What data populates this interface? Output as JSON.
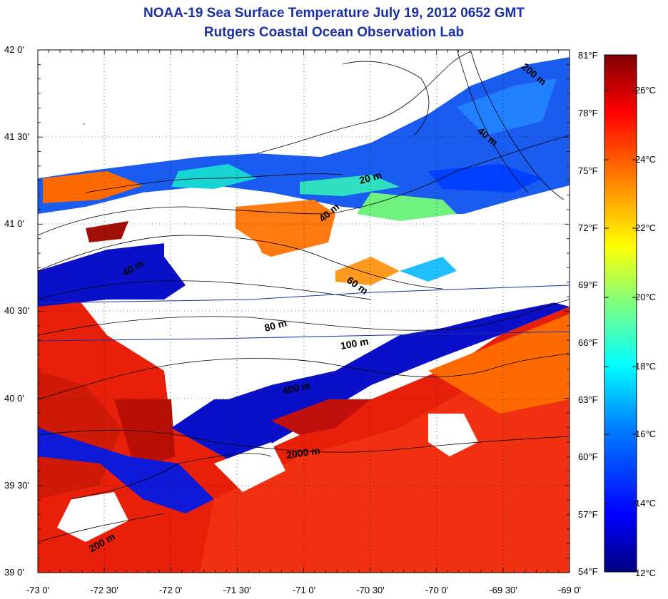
{
  "title": "NOAA-19 Sea Surface Temperature July 19, 2012 0652 GMT",
  "subtitle": "Rutgers Coastal Ocean Observation Lab",
  "lat_ticks": [
    "42 0'",
    "41 30'",
    "41 0'",
    "40 30'",
    "40 0'",
    "39 30'",
    "39 0'"
  ],
  "lon_ticks": [
    "-73 0'",
    "-72 30'",
    "-72 0'",
    "-71 30'",
    "-71 0'",
    "-70 30'",
    "-70 0'",
    "-69 30'",
    "-69 0'"
  ],
  "colorbar": {
    "f_ticks": [
      "81°F",
      "78°F",
      "75°F",
      "72°F",
      "69°F",
      "66°F",
      "63°F",
      "60°F",
      "57°F",
      "54°F"
    ],
    "c_ticks": [
      "26°C",
      "24°C",
      "22°C",
      "20°C",
      "18°C",
      "16°C",
      "14°C",
      "12°C"
    ],
    "colors": [
      "#00007f",
      "#0000ff",
      "#007fff",
      "#00ffff",
      "#7fff7f",
      "#ffff00",
      "#ff7f00",
      "#ff0000",
      "#7f0000"
    ]
  },
  "contour_labels": [
    "200 m",
    "40 m",
    "20 m",
    "40 m",
    "40 m",
    "60 m",
    "80 m",
    "100 m",
    "400 m",
    "2000 m",
    "200 m"
  ]
}
